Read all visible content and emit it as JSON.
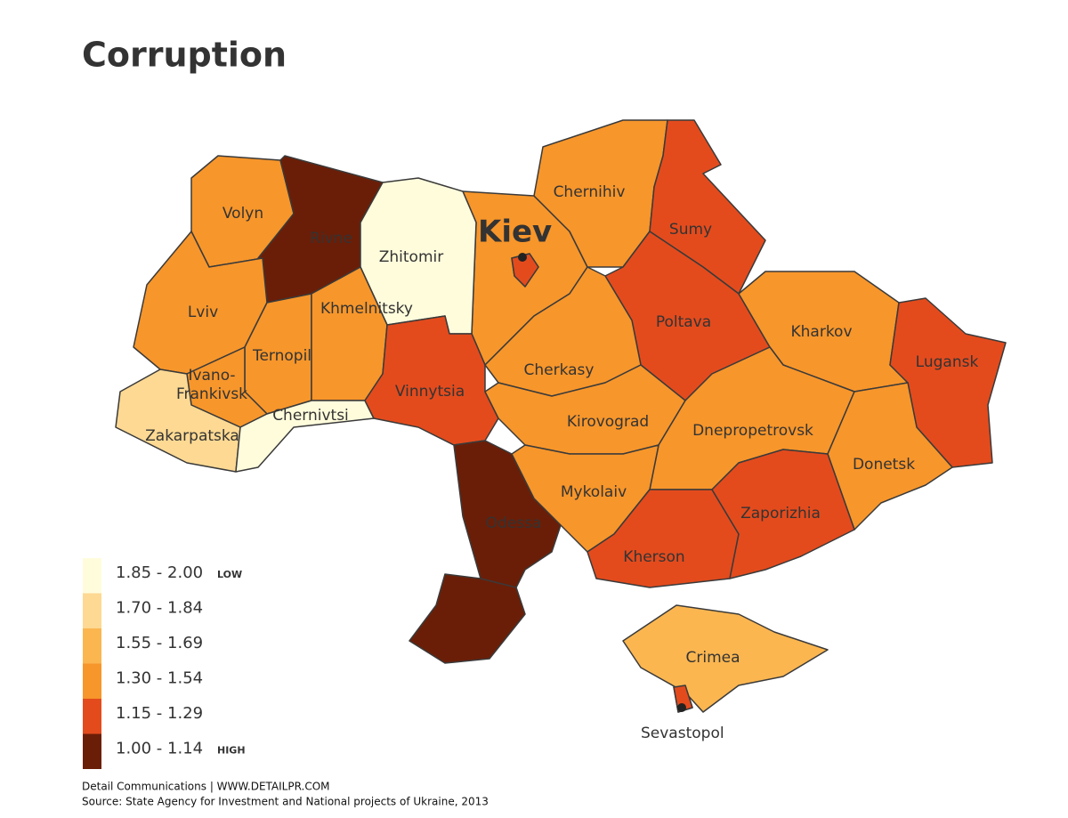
{
  "title": "Corruption",
  "legend": [
    {
      "label": "1.85 - 2.00",
      "color": "#fffcdc",
      "note": "LOW"
    },
    {
      "label": "1.70 - 1.84",
      "color": "#fdd993"
    },
    {
      "label": "1.55 - 1.69",
      "color": "#fbb650"
    },
    {
      "label": "1.30 - 1.54",
      "color": "#f7962b"
    },
    {
      "label": "1.15 - 1.29",
      "color": "#e34b1d"
    },
    {
      "label": "1.00 - 1.14",
      "color": "#6b1e07",
      "note": "HIGH"
    }
  ],
  "regions": [
    {
      "name": "Volyn",
      "color": "#f7962b"
    },
    {
      "name": "Rivne",
      "color": "#6b1e07"
    },
    {
      "name": "Zhitomir",
      "color": "#fffcdc"
    },
    {
      "name": "Lviv",
      "color": "#f7962b"
    },
    {
      "name": "Ternopil",
      "color": "#f7962b"
    },
    {
      "name": "Khmelnitsky",
      "color": "#f7962b"
    },
    {
      "name": "Ivano-\nFrankivsk",
      "color": "#f7962b"
    },
    {
      "name": "Zakarpatska",
      "color": "#fdd993"
    },
    {
      "name": "Chernivtsi",
      "color": "#fffcdc"
    },
    {
      "name": "Vinnytsia",
      "color": "#e34b1d"
    },
    {
      "name": "Chernihiv",
      "color": "#f7962b"
    },
    {
      "name": "Sumy",
      "color": "#e34b1d"
    },
    {
      "name": "Poltava",
      "color": "#e34b1d"
    },
    {
      "name": "Kharkov",
      "color": "#f7962b"
    },
    {
      "name": "Lugansk",
      "color": "#e34b1d"
    },
    {
      "name": "Cherkasy",
      "color": "#f7962b"
    },
    {
      "name": "Kirovograd",
      "color": "#f7962b"
    },
    {
      "name": "Dnepropetrovsk",
      "color": "#f7962b"
    },
    {
      "name": "Donetsk",
      "color": "#f7962b"
    },
    {
      "name": "Odessa",
      "color": "#6b1e07"
    },
    {
      "name": "Mykolaiv",
      "color": "#f7962b"
    },
    {
      "name": "Kherson",
      "color": "#e34b1d"
    },
    {
      "name": "Zaporizhia",
      "color": "#e34b1d"
    },
    {
      "name": "Crimea",
      "color": "#fbb650"
    }
  ],
  "unlabeled_regions": [
    {
      "color": "#f7962b"
    },
    {
      "color": "#e34b1d"
    },
    {
      "color": "#e34b1d"
    }
  ],
  "cities": [
    {
      "name": "Kiev"
    },
    {
      "name": "Sevastopol"
    }
  ],
  "footer": [
    "Detail Communications | WWW.DETAILPR.COM",
    "Source: State Agency for Investment and National projects of Ukraine, 2013"
  ]
}
